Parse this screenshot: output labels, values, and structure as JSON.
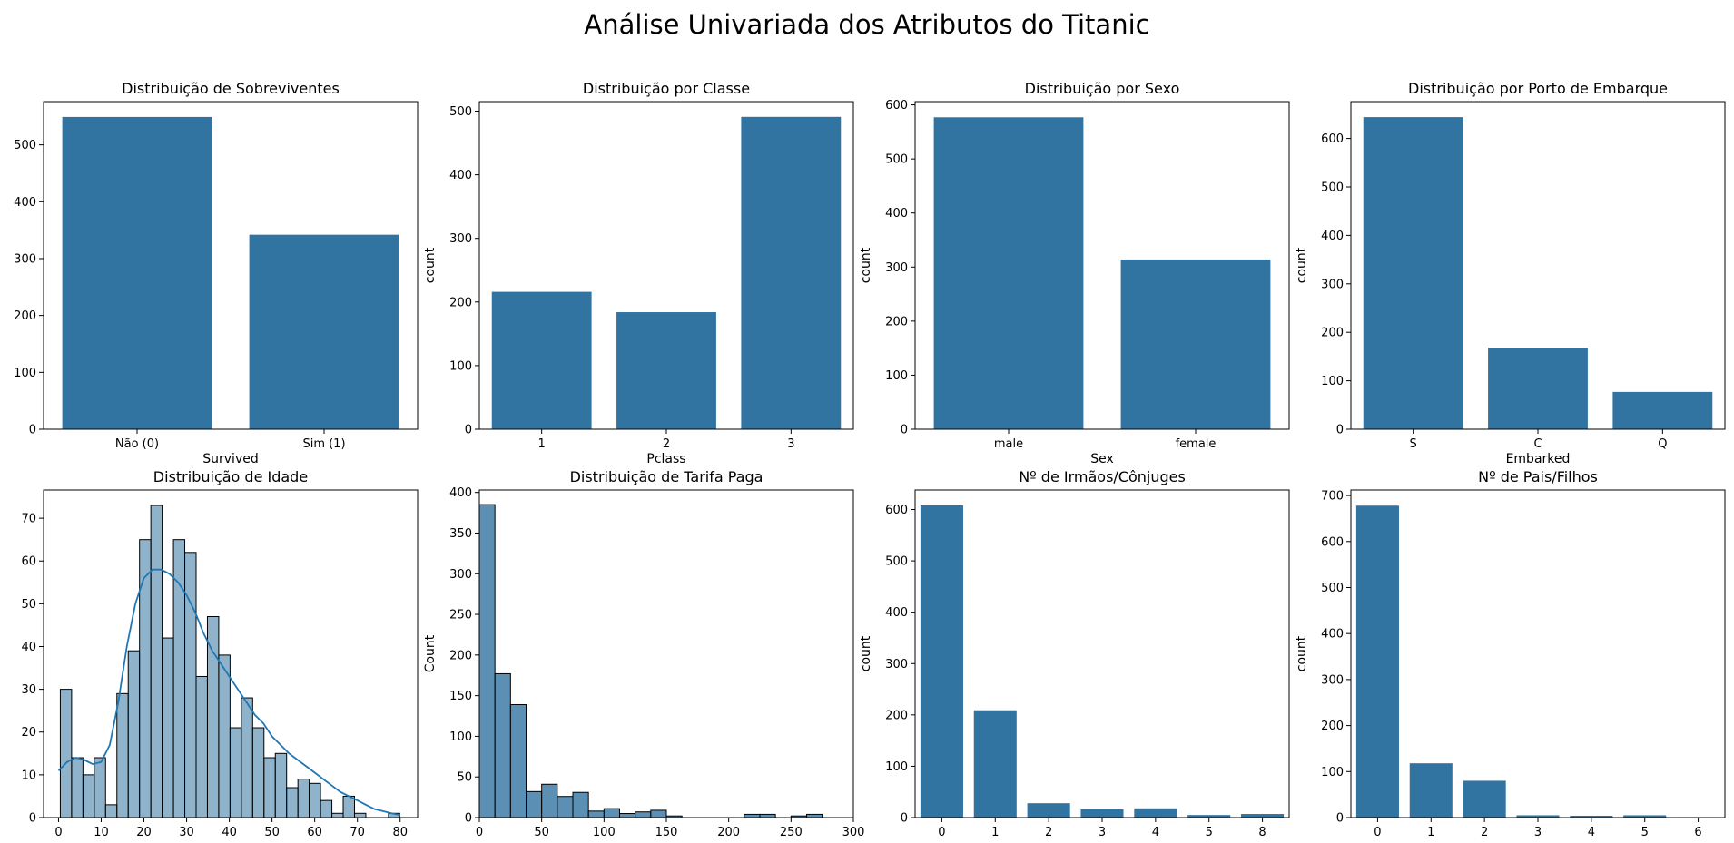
{
  "suptitle": "Análise Univariada dos Atributos do Titanic",
  "colors": {
    "bar": "#3274a1",
    "hist_fill": "#3274a1",
    "kde": "#1f77b4",
    "axis": "#000000"
  },
  "chart_data": [
    {
      "type": "bar",
      "title": "Distribuição de Sobreviventes",
      "xlabel": "Survived",
      "ylabel": "count",
      "categories": [
        "Não (0)",
        "Sim (1)"
      ],
      "values": [
        549,
        342
      ],
      "ylim": [
        0,
        576
      ],
      "yticks": [
        0,
        100,
        200,
        300,
        400,
        500
      ]
    },
    {
      "type": "bar",
      "title": "Distribuição por Classe",
      "xlabel": "Pclass",
      "ylabel": "count",
      "categories": [
        "1",
        "2",
        "3"
      ],
      "values": [
        216,
        184,
        491
      ],
      "ylim": [
        0,
        515
      ],
      "yticks": [
        0,
        100,
        200,
        300,
        400,
        500
      ]
    },
    {
      "type": "bar",
      "title": "Distribuição por Sexo",
      "xlabel": "Sex",
      "ylabel": "count",
      "categories": [
        "male",
        "female"
      ],
      "values": [
        577,
        314
      ],
      "ylim": [
        0,
        606
      ],
      "yticks": [
        0,
        100,
        200,
        300,
        400,
        500,
        600
      ]
    },
    {
      "type": "bar",
      "title": "Distribuição por Porto de Embarque",
      "xlabel": "Embarked",
      "ylabel": "count",
      "categories": [
        "S",
        "C",
        "Q"
      ],
      "values": [
        644,
        168,
        77
      ],
      "ylim": [
        0,
        676
      ],
      "yticks": [
        0,
        100,
        200,
        300,
        400,
        500,
        600
      ]
    },
    {
      "type": "histogram",
      "title": "Distribuição de Idade",
      "xlabel": "",
      "ylabel": "Count",
      "bin_start": 0.42,
      "bin_width": 2.65,
      "counts": [
        30,
        14,
        10,
        14,
        3,
        29,
        39,
        65,
        73,
        42,
        65,
        62,
        33,
        47,
        38,
        21,
        28,
        21,
        14,
        15,
        7,
        9,
        8,
        4,
        1,
        5,
        1,
        0,
        0,
        1
      ],
      "kde": {
        "x": [
          0,
          2,
          4,
          6,
          8,
          10,
          12,
          14,
          16,
          18,
          20,
          22,
          24,
          26,
          28,
          30,
          32,
          34,
          36,
          38,
          40,
          42,
          44,
          46,
          48,
          50,
          52,
          54,
          56,
          58,
          60,
          62,
          64,
          66,
          68,
          70,
          72,
          74,
          76,
          78,
          80
        ],
        "y": [
          11,
          13,
          14,
          13.5,
          12.5,
          13,
          17,
          27,
          40,
          50,
          56,
          58,
          58,
          57,
          55,
          52,
          48,
          43,
          39,
          36,
          33,
          30,
          27,
          24,
          22,
          19,
          17,
          15,
          13.5,
          12,
          10.5,
          9,
          7.5,
          6,
          5,
          4,
          3,
          2,
          1.5,
          1,
          0.6
        ]
      },
      "xlim": [
        -3.5,
        84.1
      ],
      "ylim": [
        0,
        76.6
      ],
      "xticks": [
        0,
        10,
        20,
        30,
        40,
        50,
        60,
        70,
        80
      ],
      "yticks": [
        0,
        10,
        20,
        30,
        40,
        50,
        60,
        70
      ]
    },
    {
      "type": "histogram",
      "title": "Distribuição de Tarifa Paga",
      "xlabel": "",
      "ylabel": "Count",
      "bin_start": 0,
      "bin_width": 12.5,
      "counts": [
        385,
        177,
        139,
        32,
        41,
        26,
        31,
        8,
        11,
        5,
        7,
        9,
        2,
        0,
        0,
        0,
        0,
        4,
        4,
        0,
        2,
        4
      ],
      "xlim": [
        0,
        300
      ],
      "ylim": [
        0,
        403
      ],
      "xticks": [
        0,
        50,
        100,
        150,
        200,
        250,
        300
      ],
      "yticks": [
        0,
        50,
        100,
        150,
        200,
        250,
        300,
        350,
        400
      ]
    },
    {
      "type": "bar",
      "title": "Nº de Irmãos/Cônjuges",
      "xlabel": "",
      "ylabel": "count",
      "categories": [
        "0",
        "1",
        "2",
        "3",
        "4",
        "5",
        "8"
      ],
      "values": [
        608,
        209,
        28,
        16,
        18,
        5,
        7
      ],
      "ylim": [
        0,
        638
      ],
      "yticks": [
        0,
        100,
        200,
        300,
        400,
        500,
        600
      ]
    },
    {
      "type": "bar",
      "title": "Nº de Pais/Filhos",
      "xlabel": "",
      "ylabel": "count",
      "categories": [
        "0",
        "1",
        "2",
        "3",
        "4",
        "5",
        "6"
      ],
      "values": [
        678,
        118,
        80,
        5,
        4,
        5,
        1
      ],
      "ylim": [
        0,
        712
      ],
      "yticks": [
        0,
        100,
        200,
        300,
        400,
        500,
        600,
        700
      ]
    }
  ]
}
